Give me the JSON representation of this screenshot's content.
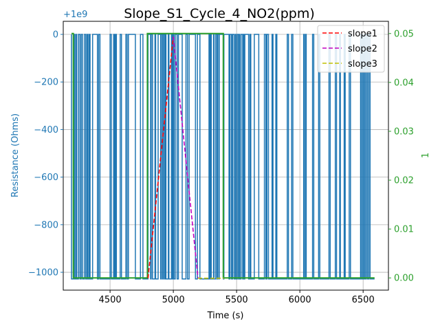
{
  "chart_data": {
    "type": "line",
    "title": "Slope_S1_Cycle_4_NO2(ppm)",
    "xlabel": "Time (s)",
    "ylabel_left": "Resistance (Ohms)",
    "ylabel_right": "1",
    "offset_label": "+1e9",
    "xlim": [
      4130,
      6700
    ],
    "ylim_left": [
      -1075,
      55
    ],
    "ylim_right": [
      -0.0025,
      0.0525
    ],
    "x_ticks": [
      4500,
      5000,
      5500,
      6000,
      6500
    ],
    "y_left_ticks": [
      0,
      -200,
      -400,
      -600,
      -800,
      -1000
    ],
    "y_right_ticks": [
      0.0,
      0.01,
      0.02,
      0.03,
      0.04,
      0.05
    ],
    "y_right_tick_labels": [
      "0.00",
      "0.01",
      "0.02",
      "0.03",
      "0.04",
      "0.05"
    ],
    "grid": true,
    "legend_position": "top-right",
    "colors": {
      "resistance": "#1f77b4",
      "concentration": "#2ca02c",
      "slope1": "#ff0000",
      "slope2": "#bf00bf",
      "slope3": "#bfbf00"
    },
    "series": [
      {
        "name": "slope1",
        "axis": "left",
        "style": "dashed",
        "x": [
          4800,
          5000
        ],
        "y": [
          -1025,
          -10
        ]
      },
      {
        "name": "slope2",
        "axis": "left",
        "style": "dashed",
        "x": [
          5000,
          5195
        ],
        "y": [
          -10,
          -1025
        ]
      },
      {
        "name": "slope3",
        "axis": "left",
        "style": "dashed",
        "x": [
          5195,
          5400
        ],
        "y": [
          -1025,
          -1025
        ]
      }
    ],
    "resistance_high": 0,
    "resistance_low": -1028,
    "resistance_toggle_times": [
      4195,
      4212,
      4218,
      4228,
      4236,
      4250,
      4262,
      4272,
      4282,
      4298,
      4308,
      4318,
      4324,
      4334,
      4342,
      4362,
      4400,
      4410,
      4420,
      4500,
      4510,
      4528,
      4535,
      4542,
      4550,
      4580,
      4590,
      4625,
      4635,
      4645,
      4700,
      4740,
      4760,
      4800,
      4820,
      4825,
      4835,
      4855,
      4860,
      4880,
      4900,
      4905,
      4915,
      4920,
      4930,
      4935,
      4942,
      4960,
      4965,
      4985,
      4990,
      4998,
      5005,
      5015,
      5030,
      5040,
      5070,
      5100,
      5112,
      5125,
      5175,
      5190,
      5210,
      5282,
      5290,
      5296,
      5300,
      5318,
      5322,
      5335,
      5345,
      5350,
      5360,
      5363,
      5395,
      5400,
      5440,
      5448,
      5460,
      5468,
      5480,
      5490,
      5495,
      5505,
      5515,
      5520,
      5525,
      5535,
      5548,
      5555,
      5560,
      5565,
      5595,
      5605,
      5612,
      5640,
      5675,
      5720,
      5732,
      5740,
      5752,
      5780,
      5788,
      5810,
      5818,
      5900,
      5910,
      5935,
      5945,
      6030,
      6035,
      6045,
      6050,
      6100,
      6110,
      6148,
      6158,
      6230,
      6240,
      6280,
      6290,
      6315,
      6320,
      6350,
      6358,
      6390,
      6400,
      6480,
      6485,
      6495,
      6500,
      6510,
      6515,
      6525,
      6535,
      6545,
      6555
    ],
    "concentration": {
      "x": [
        4195,
        4210,
        4210,
        4795,
        4795,
        5395,
        5395,
        6590
      ],
      "y": [
        0.05,
        0.05,
        0.0,
        0.0,
        0.05,
        0.05,
        0.0,
        0.0
      ]
    }
  }
}
